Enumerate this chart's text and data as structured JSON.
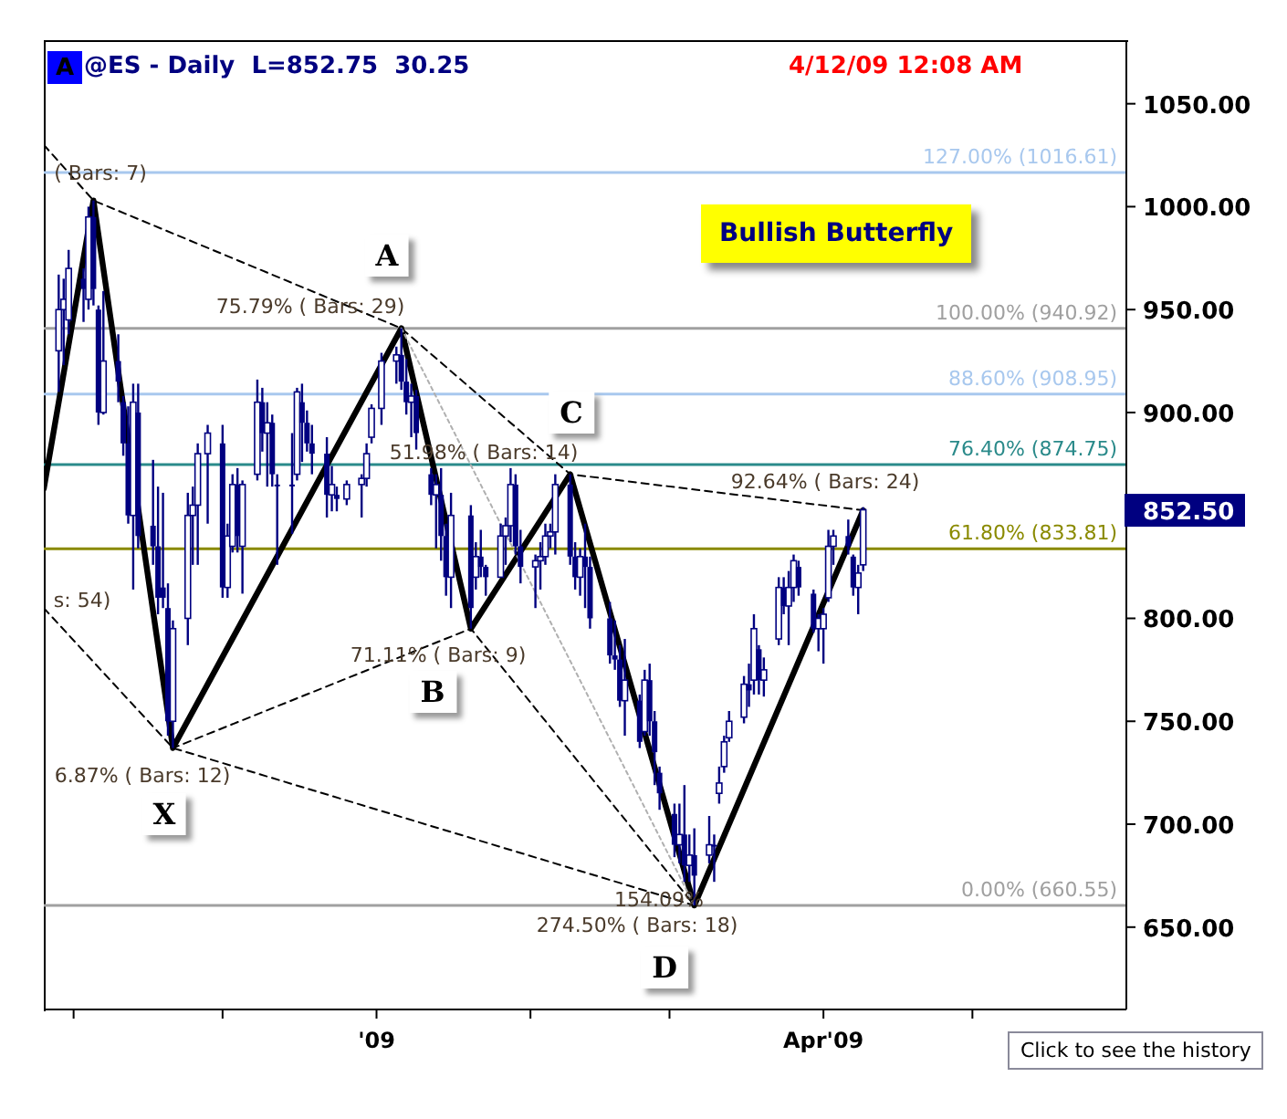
{
  "chart_data": {
    "type": "candlestick",
    "title": "@ES - Daily  L=852.75  30.25",
    "subtitle": "4/12/09 12:08 AM",
    "color": "#000080",
    "marker": "none",
    "x": [
      "2008-10-29",
      "2008-10-30",
      "2008-10-31",
      "2008-11-03",
      "2008-11-04",
      "2008-11-05",
      "2008-11-06",
      "2008-11-07",
      "2008-11-10",
      "2008-11-11",
      "2008-11-12",
      "2008-11-13",
      "2008-11-14",
      "2008-11-17",
      "2008-11-18",
      "2008-11-19",
      "2008-11-20",
      "2008-11-21",
      "2008-11-24",
      "2008-11-25",
      "2008-11-26",
      "2008-11-28",
      "2008-12-01",
      "2008-12-02",
      "2008-12-03",
      "2008-12-04",
      "2008-12-05",
      "2008-12-08",
      "2008-12-09",
      "2008-12-10",
      "2008-12-11",
      "2008-12-12",
      "2008-12-15",
      "2008-12-16",
      "2008-12-17",
      "2008-12-18",
      "2008-12-19",
      "2008-12-22",
      "2008-12-23",
      "2008-12-24",
      "2008-12-26",
      "2008-12-29",
      "2008-12-30",
      "2008-12-31",
      "2009-01-02",
      "2009-01-05",
      "2009-01-06",
      "2009-01-07",
      "2009-01-08",
      "2009-01-09",
      "2009-01-12",
      "2009-01-13",
      "2009-01-14",
      "2009-01-15",
      "2009-01-16",
      "2009-01-20",
      "2009-01-21",
      "2009-01-22",
      "2009-01-23",
      "2009-01-26",
      "2009-01-27",
      "2009-01-28",
      "2009-01-29",
      "2009-01-30",
      "2009-02-02",
      "2009-02-03",
      "2009-02-04",
      "2009-02-05",
      "2009-02-06",
      "2009-02-09",
      "2009-02-10",
      "2009-02-11",
      "2009-02-12",
      "2009-02-13",
      "2009-02-17",
      "2009-02-18",
      "2009-02-19",
      "2009-02-20",
      "2009-02-23",
      "2009-02-24",
      "2009-02-25",
      "2009-02-26",
      "2009-02-27",
      "2009-03-02",
      "2009-03-03",
      "2009-03-04",
      "2009-03-05",
      "2009-03-06",
      "2009-03-09",
      "2009-03-10",
      "2009-03-11",
      "2009-03-12",
      "2009-03-13",
      "2009-03-16",
      "2009-03-17",
      "2009-03-18",
      "2009-03-19",
      "2009-03-20",
      "2009-03-23",
      "2009-03-24",
      "2009-03-25",
      "2009-03-26",
      "2009-03-27",
      "2009-03-30",
      "2009-03-31",
      "2009-04-01",
      "2009-04-02",
      "2009-04-03",
      "2009-04-06",
      "2009-04-07",
      "2009-04-08",
      "2009-04-09"
    ],
    "ohlc": [
      [
        930,
        967,
        910,
        950
      ],
      [
        950,
        965,
        923,
        955
      ],
      [
        945,
        979,
        938,
        970
      ],
      [
        965,
        970,
        944,
        960
      ],
      [
        955,
        1000,
        950,
        995
      ],
      [
        995,
        1003,
        952,
        960
      ],
      [
        950,
        952,
        894,
        900
      ],
      [
        900,
        959,
        899,
        925
      ],
      [
        925,
        938,
        905,
        915
      ],
      [
        905,
        908,
        879,
        885
      ],
      [
        885,
        903,
        846,
        850
      ],
      [
        850,
        914,
        814,
        905
      ],
      [
        900,
        914,
        834,
        840
      ],
      [
        845,
        877,
        826,
        835
      ],
      [
        835,
        864,
        802,
        810
      ],
      [
        815,
        861,
        805,
        810
      ],
      [
        805,
        817,
        743,
        750
      ],
      [
        750,
        799,
        737,
        795
      ],
      [
        800,
        861,
        787,
        850
      ],
      [
        850,
        864,
        826,
        855
      ],
      [
        855,
        885,
        826,
        880
      ],
      [
        880,
        894,
        846,
        890
      ],
      [
        885,
        894,
        810,
        815
      ],
      [
        815,
        846,
        810,
        840
      ],
      [
        835,
        870,
        832,
        865
      ],
      [
        865,
        873,
        832,
        840
      ],
      [
        835,
        867,
        812,
        865
      ],
      [
        870,
        916,
        867,
        905
      ],
      [
        905,
        912,
        881,
        890
      ],
      [
        890,
        905,
        864,
        895
      ],
      [
        895,
        899,
        864,
        870
      ],
      [
        865,
        870,
        826,
        865
      ],
      [
        865,
        890,
        841,
        865
      ],
      [
        870,
        912,
        867,
        910
      ],
      [
        905,
        914,
        876,
        895
      ],
      [
        895,
        901,
        881,
        885
      ],
      [
        885,
        894,
        870,
        880
      ],
      [
        880,
        888,
        849,
        860
      ],
      [
        860,
        874,
        852,
        865
      ],
      [
        860,
        864,
        852,
        858
      ],
      [
        858,
        867,
        855,
        865
      ],
      [
        865,
        870,
        849,
        868
      ],
      [
        868,
        885,
        864,
        880
      ],
      [
        888,
        904,
        885,
        902
      ],
      [
        902,
        929,
        894,
        925
      ],
      [
        925,
        932,
        914,
        928
      ],
      [
        928,
        940.92,
        911,
        915
      ],
      [
        915,
        926,
        899,
        905
      ],
      [
        905,
        914,
        888,
        908
      ],
      [
        908,
        911,
        882,
        890
      ],
      [
        870,
        873,
        855,
        860
      ],
      [
        860,
        870,
        834,
        865
      ],
      [
        860,
        873,
        828,
        840
      ],
      [
        840,
        846,
        811,
        820
      ],
      [
        820,
        861,
        805,
        850
      ],
      [
        850,
        855,
        795,
        805
      ],
      [
        820,
        837,
        814,
        830
      ],
      [
        830,
        843,
        820,
        825
      ],
      [
        825,
        826,
        811,
        820
      ],
      [
        820,
        846,
        820,
        840
      ],
      [
        840,
        849,
        826,
        845
      ],
      [
        845,
        873,
        837,
        865
      ],
      [
        865,
        870,
        831,
        835
      ],
      [
        835,
        843,
        817,
        825
      ],
      [
        825,
        831,
        805,
        828
      ],
      [
        828,
        837,
        814,
        830
      ],
      [
        830,
        846,
        826,
        840
      ],
      [
        840,
        846,
        834,
        842
      ],
      [
        842,
        870,
        831,
        865
      ],
      [
        865,
        870,
        826,
        830
      ],
      [
        830,
        837,
        814,
        820
      ],
      [
        820,
        834,
        811,
        830
      ],
      [
        830,
        846,
        805,
        825
      ],
      [
        825,
        830,
        795,
        800
      ],
      [
        800,
        808,
        778,
        782
      ],
      [
        782,
        799,
        775,
        780
      ],
      [
        780,
        787,
        757,
        760
      ],
      [
        760,
        790,
        743,
        770
      ],
      [
        760,
        763,
        737,
        740
      ],
      [
        745,
        775,
        743,
        770
      ],
      [
        770,
        778,
        743,
        750
      ],
      [
        750,
        755,
        719,
        735
      ],
      [
        725,
        728,
        707,
        715
      ],
      [
        705,
        710,
        684,
        690
      ],
      [
        690,
        710,
        681,
        695
      ],
      [
        695,
        719,
        672,
        680
      ],
      [
        680,
        695,
        672,
        685
      ],
      [
        685,
        698,
        660.55,
        675
      ],
      [
        685,
        704,
        681,
        690
      ],
      [
        690,
        695,
        672,
        690
      ],
      [
        715,
        728,
        710,
        720
      ],
      [
        728,
        743,
        725,
        740
      ],
      [
        742,
        755,
        740,
        750
      ],
      [
        752,
        772,
        749,
        768
      ],
      [
        768,
        778,
        757,
        765
      ],
      [
        770,
        802,
        763,
        795
      ],
      [
        785,
        787,
        763,
        770
      ],
      [
        770,
        781,
        762,
        775
      ],
      [
        790,
        820,
        787,
        815
      ],
      [
        815,
        820,
        802,
        806
      ],
      [
        806,
        823,
        787,
        815
      ],
      [
        815,
        831,
        808,
        828
      ],
      [
        825,
        828,
        811,
        815
      ],
      [
        812,
        814,
        793,
        795
      ],
      [
        795,
        802,
        784,
        800
      ],
      [
        795,
        805,
        778,
        802
      ],
      [
        810,
        843,
        808,
        835
      ],
      [
        835,
        843,
        826,
        840
      ],
      [
        840,
        848,
        831,
        835
      ],
      [
        830,
        831,
        811,
        815
      ],
      [
        815,
        826,
        802,
        822
      ],
      [
        826,
        854,
        823,
        852.75
      ]
    ],
    "series": [
      {
        "type": "line",
        "color": "#000000",
        "line_style": "solid",
        "x": [
          "2008-10-26",
          "2008-11-05",
          "2008-11-21",
          "2009-01-06",
          "2009-01-20",
          "2009-02-09",
          "2009-03-06",
          "2009-04-09"
        ],
        "values": [
          863,
          1003,
          737,
          940.92,
          795,
          870,
          660.55,
          852.5
        ]
      },
      {
        "type": "line",
        "color": "#000000",
        "line_style": "dashed",
        "x": [
          "2008-10-26",
          "2008-11-05",
          "2009-01-06",
          "2009-02-09",
          "2009-04-09"
        ],
        "values": [
          1030,
          1003,
          940.92,
          870,
          852.5
        ]
      },
      {
        "type": "line",
        "color": "#000000",
        "line_style": "dashed",
        "x": [
          "2008-10-26",
          "2008-11-21",
          "2009-03-06",
          "2009-01-20",
          "2008-11-21"
        ],
        "values": [
          805,
          737,
          660.55,
          795,
          737
        ]
      },
      {
        "type": "line",
        "color": "#b0b0b0",
        "line_style": "dotted",
        "x": [
          "2009-01-06",
          "2009-03-06"
        ],
        "values": [
          940.92,
          660.55
        ]
      }
    ],
    "xlim": [
      "2008-10-26",
      "2009-06-01"
    ],
    "xticks": [
      {
        "value": "2008-11-01",
        "label": null
      },
      {
        "value": "2008-12-01",
        "label": null
      },
      {
        "value": "2009-01-01",
        "label": "'09"
      },
      {
        "value": "2009-02-01",
        "label": null
      },
      {
        "value": "2009-03-01",
        "label": null
      },
      {
        "value": "2009-04-01",
        "label": "Apr'09"
      },
      {
        "value": "2009-05-01",
        "label": null
      }
    ],
    "ylim": [
      610,
      1080
    ],
    "yticks": [
      {
        "value": 650,
        "label": "650.00"
      },
      {
        "value": 700,
        "label": "700.00"
      },
      {
        "value": 750,
        "label": "750.00"
      },
      {
        "value": 800,
        "label": "800.00"
      },
      {
        "value": 900,
        "label": "900.00"
      },
      {
        "value": 950,
        "label": "950.00"
      },
      {
        "value": 1000,
        "label": "1000.00"
      },
      {
        "value": 1050,
        "label": "1050.00"
      },
      {
        "value": 852.5,
        "label": "852.50"
      }
    ],
    "ref_lines": [
      {
        "axis": "y",
        "value": 1016.61,
        "label": "127.00% (1016.61)",
        "color": "#a8c8ee"
      },
      {
        "axis": "y",
        "value": 940.92,
        "label": "100.00% (940.92)",
        "color": "#a0a0a0"
      },
      {
        "axis": "y",
        "value": 908.95,
        "label": "88.60% (908.95)",
        "color": "#a8c8ee"
      },
      {
        "axis": "y",
        "value": 874.75,
        "label": "76.40% (874.75)",
        "color": "#2a8a8a"
      },
      {
        "axis": "y",
        "value": 833.81,
        "label": "61.80% (833.81)",
        "color": "#8a8a00"
      },
      {
        "axis": "y",
        "value": 660.55,
        "label": "0.00% (660.55)",
        "color": "#a0a0a0"
      }
    ],
    "annotations": [
      "A",
      "Bullish Butterfly",
      "Click to see the history",
      "( Bars: 7)",
      "75.79% ( Bars: 29)",
      "s: 54)",
      "6.87% ( Bars: 12)",
      "71.11% ( Bars: 9)",
      "51.98% ( Bars: 14)",
      "92.64% ( Bars: 24)",
      "154.09%",
      "274.50% ( Bars: 18)",
      "A",
      "B",
      "C",
      "D",
      "X"
    ]
  }
}
